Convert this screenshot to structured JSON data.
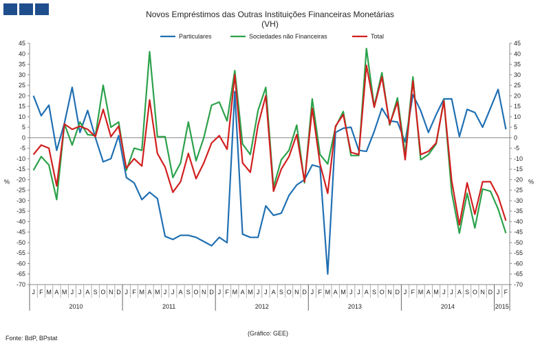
{
  "header": {
    "title": "Novos Empréstimos das Outras Instituições Financeiras Monetárias",
    "subtitle": "(VH)"
  },
  "footer": {
    "source": "Fonte: BdP, BPstat",
    "credit": "(Gráfico: GEE)"
  },
  "colors": {
    "logo": "#1f4e8c"
  },
  "chart_data": {
    "type": "line",
    "ylabel_left": "%",
    "ylabel_right": "%",
    "ylim": [
      -70,
      45
    ],
    "yticks": [
      45,
      40,
      35,
      30,
      25,
      20,
      15,
      10,
      5,
      0,
      -5,
      -10,
      -15,
      -20,
      -25,
      -30,
      -35,
      -40,
      -45,
      -50,
      -55,
      -60,
      -65,
      -70
    ],
    "month_labels": [
      "J",
      "F",
      "M",
      "A",
      "M",
      "J",
      "J",
      "A",
      "S",
      "O",
      "N",
      "D",
      "J",
      "F",
      "M",
      "A",
      "M",
      "J",
      "J",
      "A",
      "S",
      "O",
      "N",
      "D",
      "J",
      "F",
      "M",
      "A",
      "M",
      "J",
      "J",
      "A",
      "S",
      "O",
      "N",
      "D",
      "J",
      "F",
      "M",
      "A",
      "M",
      "J",
      "J",
      "A",
      "S",
      "O",
      "N",
      "D",
      "J",
      "F",
      "M",
      "A",
      "M",
      "J",
      "J",
      "A",
      "S",
      "O",
      "N",
      "D",
      "J",
      "F"
    ],
    "years": [
      {
        "label": "2010",
        "months": 12
      },
      {
        "label": "2011",
        "months": 12
      },
      {
        "label": "2012",
        "months": 12
      },
      {
        "label": "2013",
        "months": 12
      },
      {
        "label": "2014",
        "months": 12
      },
      {
        "label": "2015",
        "months": 2
      }
    ],
    "legend_position": "top",
    "grid": false,
    "series": [
      {
        "name": "Particulares",
        "color": "#1f6fb2",
        "values": [
          20,
          10.5,
          15.5,
          -6,
          7,
          24,
          2.5,
          13,
          0,
          -11.5,
          -10,
          1,
          -19,
          -21.5,
          -29.5,
          -26,
          -29,
          -47,
          -48.5,
          -46.5,
          -46.5,
          -47.5,
          -49.5,
          -51.5,
          -47.5,
          -50,
          22,
          -46,
          -47.5,
          -47.5,
          -32.5,
          -37,
          -36,
          -27.5,
          -22.5,
          -20,
          -13,
          -14,
          -65,
          2.5,
          4.5,
          5,
          -6,
          -6.5,
          3,
          14,
          8,
          7.5,
          -2,
          20.5,
          13,
          2.5,
          11,
          18.5,
          18.5,
          0.5,
          13.5,
          12,
          5,
          14,
          23,
          4
        ]
      },
      {
        "name": "Sociedades não Financeiras",
        "color": "#2ba14a",
        "values": [
          -15.5,
          -9,
          -13,
          -29.5,
          6.5,
          -3.5,
          7.5,
          1.5,
          1,
          25,
          5,
          7.5,
          -15.5,
          -5,
          -6,
          41,
          0.5,
          0.5,
          -19,
          -12,
          7.5,
          -11,
          0,
          15.5,
          17,
          8,
          32,
          -3,
          -8,
          13,
          24,
          -23.5,
          -10.5,
          -6,
          6,
          -21.5,
          18.5,
          -8,
          -12.5,
          5,
          12.5,
          -8.5,
          -8.5,
          42.5,
          15,
          31,
          6,
          19,
          -8,
          29,
          -10.5,
          -8,
          -3,
          18,
          -26,
          -45.5,
          -26.5,
          -43,
          -24.5,
          -25.5,
          -34,
          -45.5
        ]
      },
      {
        "name": "Total",
        "color": "#d11f1f",
        "values": [
          -8,
          -3.5,
          -5,
          -23,
          6.5,
          4,
          5.5,
          4,
          0.5,
          13.5,
          0.5,
          5.5,
          -14.5,
          -10,
          -13.5,
          18,
          -7.5,
          -14,
          -26,
          -21,
          -7.5,
          -19.5,
          -12,
          -2.5,
          1,
          -5.5,
          30,
          -12,
          -16.5,
          6,
          20,
          -25.5,
          -15,
          -9,
          1.5,
          -21,
          14,
          -12.5,
          -26.5,
          5.5,
          11,
          -7,
          -8,
          34.5,
          14.5,
          29,
          6.5,
          17,
          -10.5,
          27,
          -8,
          -6.5,
          -2.5,
          17.5,
          -20.5,
          -41.5,
          -21.5,
          -36.5,
          -21,
          -21,
          -28,
          -39.5
        ]
      }
    ]
  }
}
